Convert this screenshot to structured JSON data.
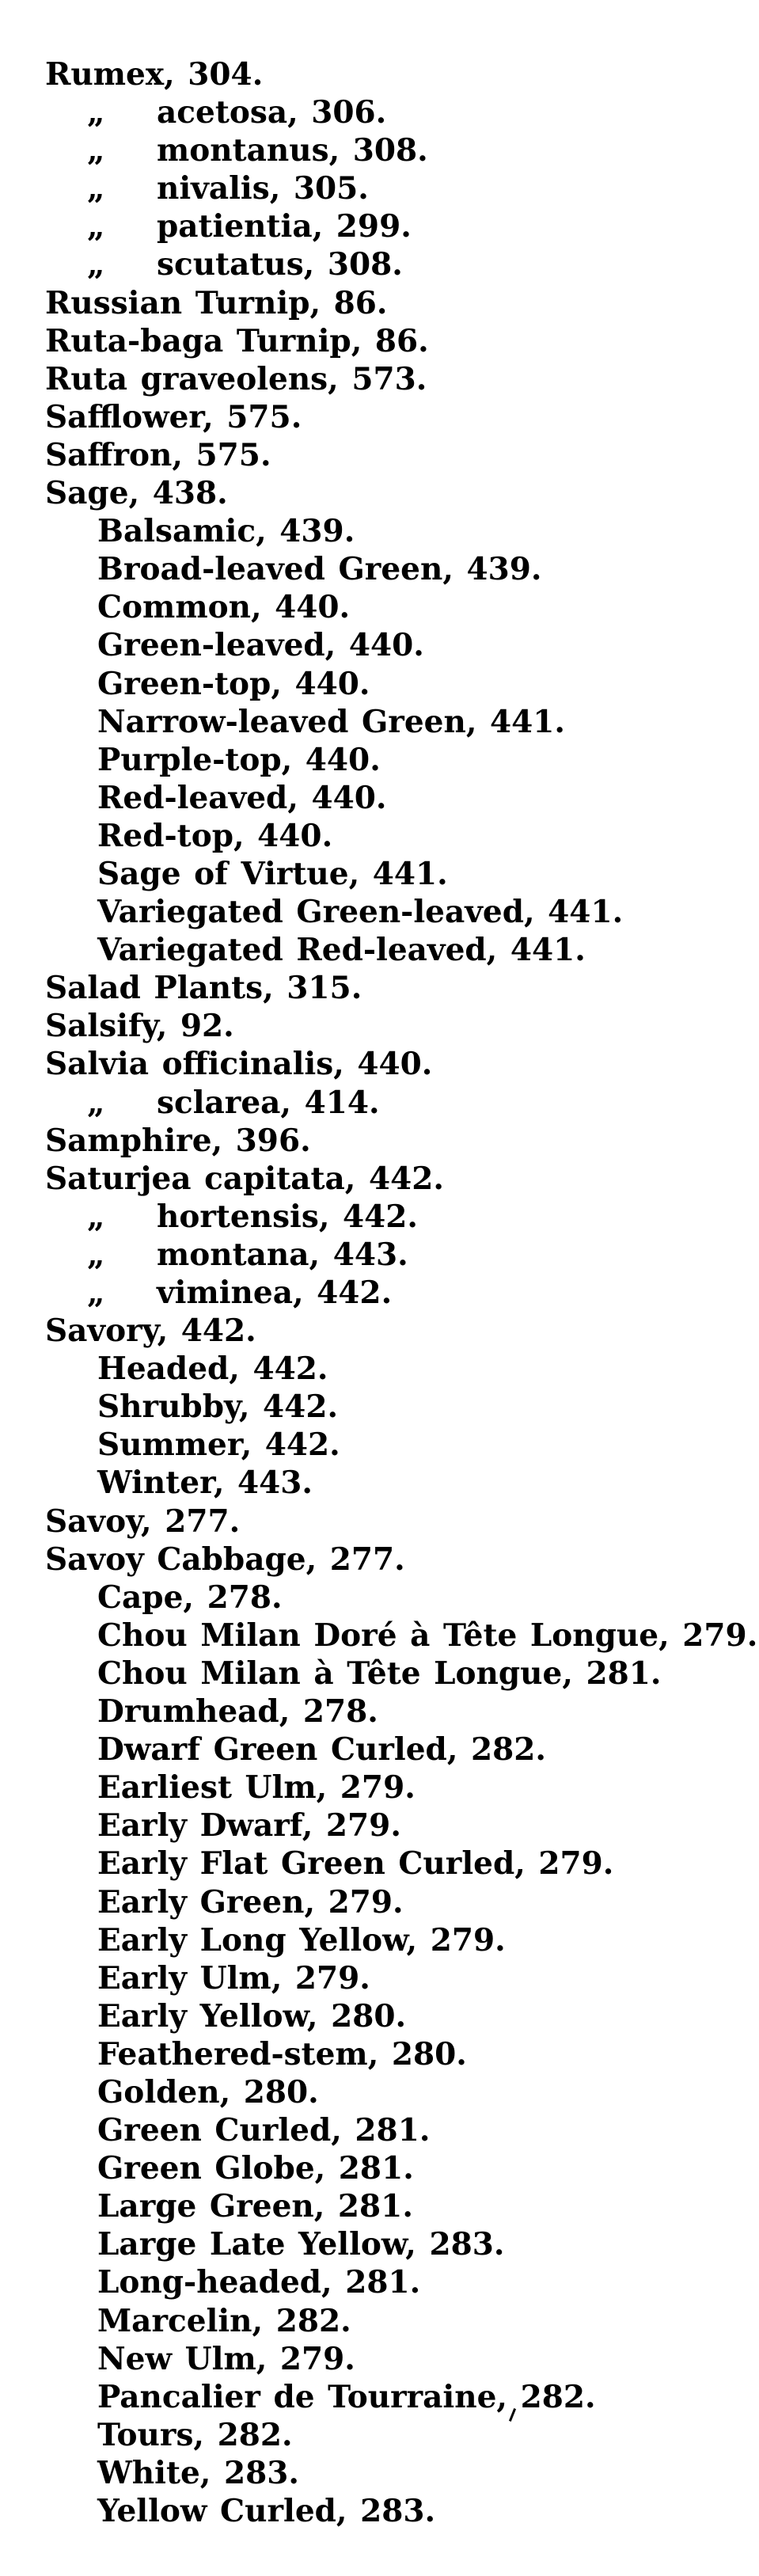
{
  "page": {
    "background": "#ffffff",
    "text_color": "#000000",
    "kind": "book-index-page"
  },
  "index": {
    "ditto_glyph": "„",
    "entries": [
      {
        "label": "Rumex",
        "page": "304",
        "level": "main",
        "ditto": false
      },
      {
        "label": "acetosa",
        "page": "306",
        "level": "species",
        "ditto": true
      },
      {
        "label": "montanus",
        "page": "308",
        "level": "species",
        "ditto": true
      },
      {
        "label": "nivalis",
        "page": "305",
        "level": "species",
        "ditto": true
      },
      {
        "label": "patientia",
        "page": "299",
        "level": "species",
        "ditto": true
      },
      {
        "label": "scutatus",
        "page": "308",
        "level": "species",
        "ditto": true
      },
      {
        "label": "Russian Turnip",
        "page": "86",
        "level": "main",
        "ditto": false
      },
      {
        "label": "Ruta-baga Turnip",
        "page": "86",
        "level": "main",
        "ditto": false
      },
      {
        "label": "Ruta graveolens",
        "page": "573",
        "level": "main",
        "ditto": false
      },
      {
        "label": "Safflower",
        "page": "575",
        "level": "main",
        "ditto": false
      },
      {
        "label": "Saffron",
        "page": "575",
        "level": "main",
        "ditto": false
      },
      {
        "label": "Sage",
        "page": "438",
        "level": "main",
        "ditto": false
      },
      {
        "label": "Balsamic",
        "page": "439",
        "level": "sub",
        "ditto": false
      },
      {
        "label": "Broad-leaved Green",
        "page": "439",
        "level": "sub",
        "ditto": false
      },
      {
        "label": "Common",
        "page": "440",
        "level": "sub",
        "ditto": false
      },
      {
        "label": "Green-leaved",
        "page": "440",
        "level": "sub",
        "ditto": false
      },
      {
        "label": "Green-top",
        "page": "440",
        "level": "sub",
        "ditto": false
      },
      {
        "label": "Narrow-leaved Green",
        "page": "441",
        "level": "sub",
        "ditto": false
      },
      {
        "label": "Purple-top",
        "page": "440",
        "level": "sub",
        "ditto": false
      },
      {
        "label": "Red-leaved",
        "page": "440",
        "level": "sub",
        "ditto": false
      },
      {
        "label": "Red-top",
        "page": "440",
        "level": "sub",
        "ditto": false
      },
      {
        "label": "Sage of Virtue",
        "page": "441",
        "level": "sub",
        "ditto": false
      },
      {
        "label": "Variegated Green-leaved",
        "page": "441",
        "level": "sub",
        "ditto": false
      },
      {
        "label": "Variegated Red-leaved",
        "page": "441",
        "level": "sub",
        "ditto": false
      },
      {
        "label": "Salad Plants",
        "page": "315",
        "level": "main",
        "ditto": false
      },
      {
        "label": "Salsify",
        "page": "92",
        "level": "main",
        "ditto": false
      },
      {
        "label": "Salvia officinalis",
        "page": "440",
        "level": "main",
        "ditto": false
      },
      {
        "label": "sclarea",
        "page": "414",
        "level": "species",
        "ditto": true
      },
      {
        "label": "Samphire",
        "page": "396",
        "level": "main",
        "ditto": false
      },
      {
        "label": "Saturjea capitata",
        "page": "442",
        "level": "main",
        "ditto": false
      },
      {
        "label": "hortensis",
        "page": "442",
        "level": "species",
        "ditto": true
      },
      {
        "label": "montana",
        "page": "443",
        "level": "species",
        "ditto": true
      },
      {
        "label": "viminea",
        "page": "442",
        "level": "species",
        "ditto": true
      },
      {
        "label": "Savory",
        "page": "442",
        "level": "main",
        "ditto": false
      },
      {
        "label": "Headed",
        "page": "442",
        "level": "sub",
        "ditto": false
      },
      {
        "label": "Shrubby",
        "page": "442",
        "level": "sub",
        "ditto": false
      },
      {
        "label": "Summer",
        "page": "442",
        "level": "sub",
        "ditto": false
      },
      {
        "label": "Winter",
        "page": "443",
        "level": "sub",
        "ditto": false
      },
      {
        "label": "Savoy",
        "page": "277",
        "level": "main",
        "ditto": false
      },
      {
        "label": "Savoy Cabbage",
        "page": "277",
        "level": "main",
        "ditto": false
      },
      {
        "label": "Cape",
        "page": "278",
        "level": "sub",
        "ditto": false
      },
      {
        "label": "Chou Milan Doré à Tête Longue",
        "page": "279",
        "level": "sub",
        "ditto": false
      },
      {
        "label": "Chou Milan à Tête Longue",
        "page": "281",
        "level": "sub",
        "ditto": false
      },
      {
        "label": "Drumhead",
        "page": "278",
        "level": "sub",
        "ditto": false
      },
      {
        "label": "Dwarf Green Curled",
        "page": "282",
        "level": "sub",
        "ditto": false
      },
      {
        "label": "Earliest Ulm",
        "page": "279",
        "level": "sub",
        "ditto": false
      },
      {
        "label": "Early Dwarf",
        "page": "279",
        "level": "sub",
        "ditto": false
      },
      {
        "label": "Early Flat Green Curled",
        "page": "279",
        "level": "sub",
        "ditto": false
      },
      {
        "label": "Early Green",
        "page": "279",
        "level": "sub",
        "ditto": false
      },
      {
        "label": "Early Long Yellow",
        "page": "279",
        "level": "sub",
        "ditto": false
      },
      {
        "label": "Early Ulm",
        "page": "279",
        "level": "sub",
        "ditto": false
      },
      {
        "label": "Early Yellow",
        "page": "280",
        "level": "sub",
        "ditto": false
      },
      {
        "label": "Feathered-stem",
        "page": "280",
        "level": "sub",
        "ditto": false
      },
      {
        "label": "Golden",
        "page": "280",
        "level": "sub",
        "ditto": false
      },
      {
        "label": "Green Curled",
        "page": "281",
        "level": "sub",
        "ditto": false
      },
      {
        "label": "Green Globe",
        "page": "281",
        "level": "sub",
        "ditto": false
      },
      {
        "label": "Large Green",
        "page": "281",
        "level": "sub",
        "ditto": false
      },
      {
        "label": "Large Late Yellow",
        "page": "283",
        "level": "sub",
        "ditto": false
      },
      {
        "label": "Long-headed",
        "page": "281",
        "level": "sub",
        "ditto": false
      },
      {
        "label": "Marcelin",
        "page": "282",
        "level": "sub",
        "ditto": false
      },
      {
        "label": "New Ulm",
        "page": "279",
        "level": "sub",
        "ditto": false
      },
      {
        "label": "Pancalier de Tourraine",
        "page": "282",
        "level": "sub",
        "ditto": false
      },
      {
        "label": "Tours",
        "page": "282",
        "level": "sub",
        "ditto": false
      },
      {
        "label": "White",
        "page": "283",
        "level": "sub",
        "ditto": false
      },
      {
        "label": "Yellow Curled",
        "page": "283",
        "level": "sub",
        "ditto": false
      }
    ]
  }
}
